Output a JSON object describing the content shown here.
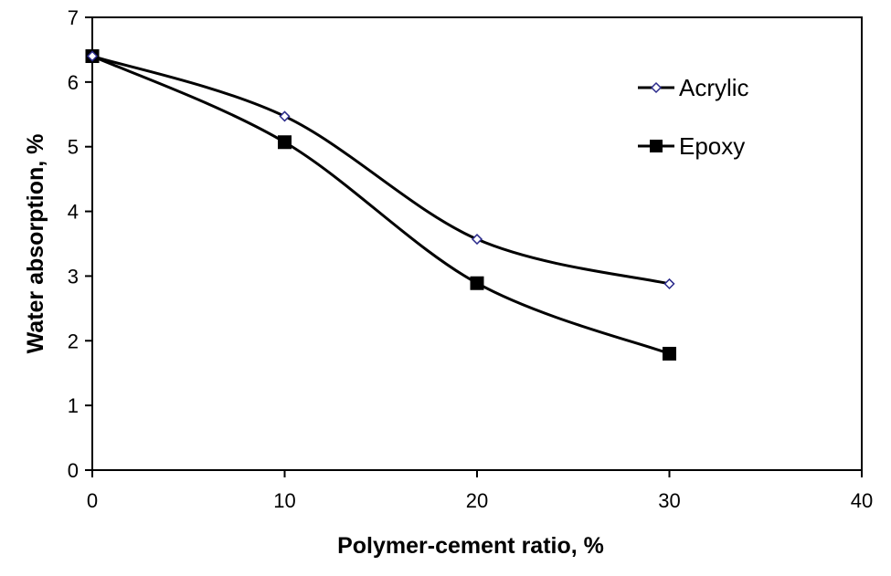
{
  "chart_data": {
    "type": "line",
    "title": "",
    "xlabel": "Polymer-cement ratio, %",
    "ylabel": "Water absorption, %",
    "xlim": [
      0,
      40
    ],
    "ylim": [
      0,
      7
    ],
    "xticks": [
      "0",
      "10",
      "20",
      "30",
      "40"
    ],
    "yticks": [
      "0",
      "1",
      "2",
      "3",
      "4",
      "5",
      "6",
      "7"
    ],
    "grid": false,
    "smooth": true,
    "legend_position": "top-right",
    "series": [
      {
        "name": "Acrylic",
        "x": [
          0,
          10,
          20,
          30
        ],
        "y": [
          6.4,
          5.47,
          3.57,
          2.88
        ],
        "marker": "open-diamond",
        "line_color": "#000000",
        "marker_color": "#2b2b8c"
      },
      {
        "name": "Epoxy",
        "x": [
          0,
          10,
          20,
          30
        ],
        "y": [
          6.4,
          5.07,
          2.89,
          1.8
        ],
        "marker": "filled-square",
        "line_color": "#000000",
        "marker_color": "#000000"
      }
    ]
  }
}
